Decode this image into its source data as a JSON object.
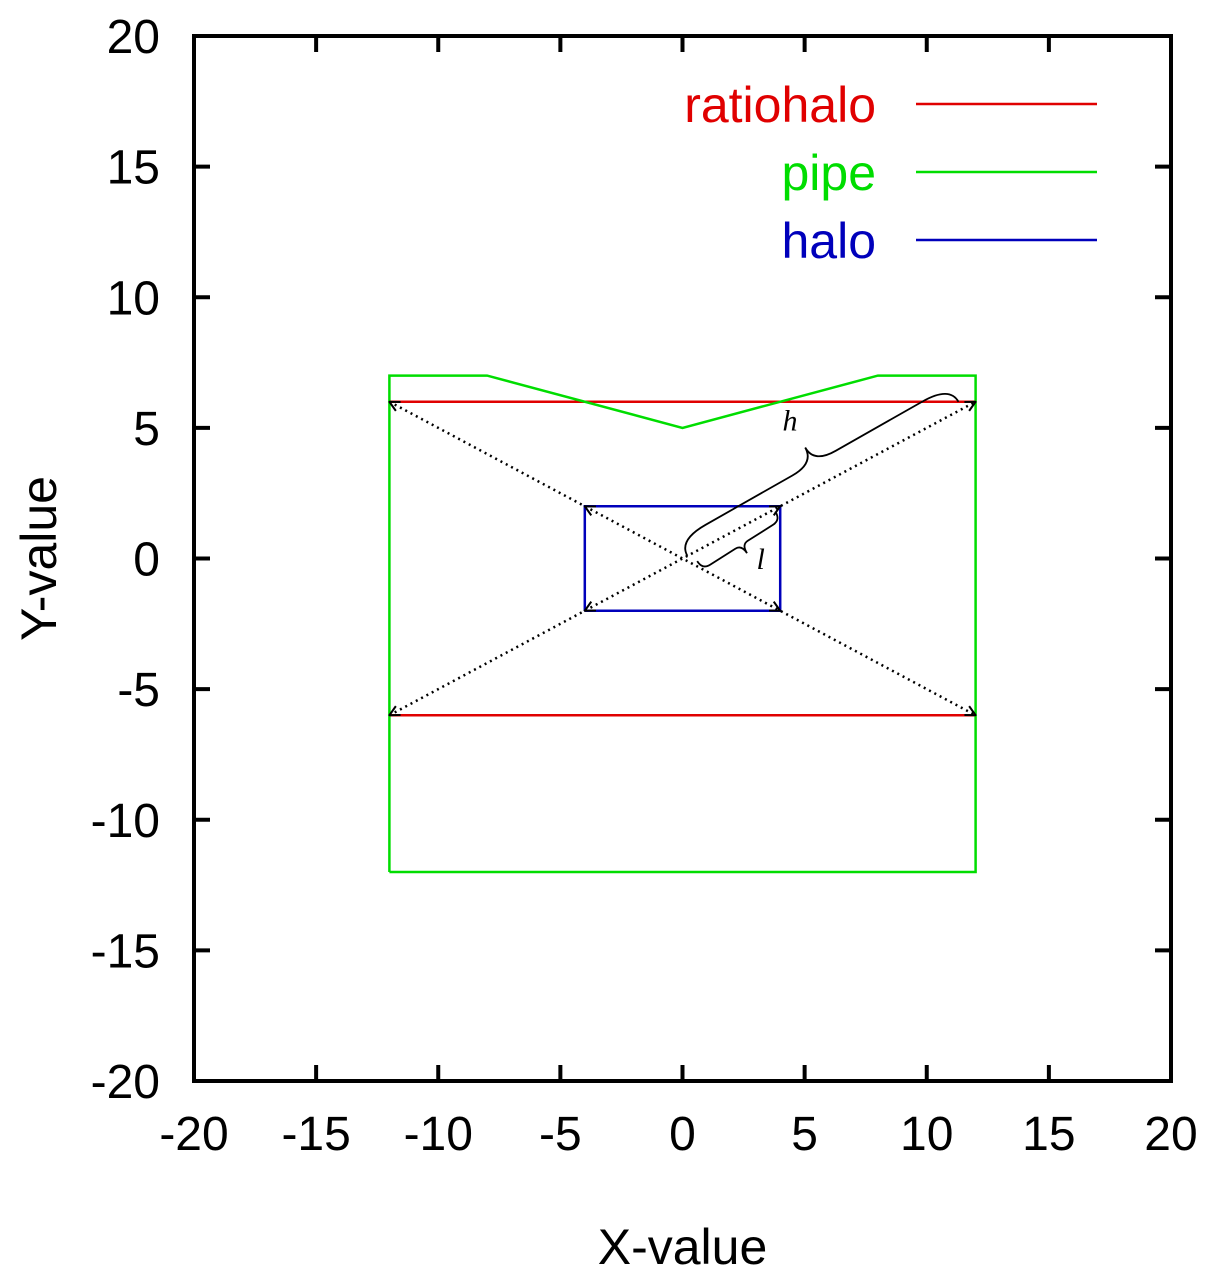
{
  "chart_data": {
    "type": "line",
    "xlabel": "X-value",
    "ylabel": "Y-value",
    "xlim": [
      -20,
      20
    ],
    "ylim": [
      -20,
      20
    ],
    "x_ticks": [
      -20,
      -15,
      -10,
      -5,
      0,
      5,
      10,
      15,
      20
    ],
    "y_ticks": [
      -20,
      -15,
      -10,
      -5,
      0,
      5,
      10,
      15,
      20
    ],
    "x_tick_labels": [
      "-20",
      "-15",
      "-10",
      "-5",
      "0",
      "5",
      "10",
      "15",
      "20"
    ],
    "y_tick_labels": [
      "-20",
      "-15",
      "-10",
      "-5",
      "0",
      "5",
      "10",
      "15",
      "20"
    ],
    "grid": false,
    "legend_position": "top-right",
    "series": [
      {
        "name": "ratiohalo",
        "color": "#e00000",
        "segments": [
          [
            [
              -12,
              6
            ],
            [
              12,
              6
            ]
          ],
          [
            [
              -12,
              -6
            ],
            [
              12,
              -6
            ]
          ]
        ]
      },
      {
        "name": "pipe",
        "color": "#00dd00",
        "segments": [
          [
            [
              -12,
              -12
            ],
            [
              -12,
              7
            ],
            [
              -8,
              7
            ],
            [
              0,
              5
            ],
            [
              8,
              7
            ],
            [
              12,
              7
            ],
            [
              12,
              -12
            ],
            [
              -12,
              -12
            ]
          ]
        ]
      },
      {
        "name": "halo",
        "color": "#0000bb",
        "segments": [
          [
            [
              -4,
              -2
            ],
            [
              -4,
              2
            ],
            [
              4,
              2
            ],
            [
              4,
              -2
            ],
            [
              -4,
              -2
            ]
          ]
        ]
      }
    ],
    "diagonals": [
      [
        [
          -12,
          6
        ],
        [
          12,
          -6
        ]
      ],
      [
        [
          -12,
          -6
        ],
        [
          12,
          6
        ]
      ]
    ],
    "inner_arrows": [
      [
        [
          0,
          0
        ],
        [
          4,
          2
        ]
      ],
      [
        [
          0,
          0
        ],
        [
          -4,
          2
        ]
      ],
      [
        [
          0,
          0
        ],
        [
          4,
          -2
        ]
      ],
      [
        [
          0,
          0
        ],
        [
          -4,
          -2
        ]
      ]
    ],
    "annotations": [
      {
        "text": "h",
        "x": 4.4,
        "y": 4.9
      },
      {
        "text": "l",
        "x": 3.2,
        "y": -0.4
      }
    ]
  }
}
